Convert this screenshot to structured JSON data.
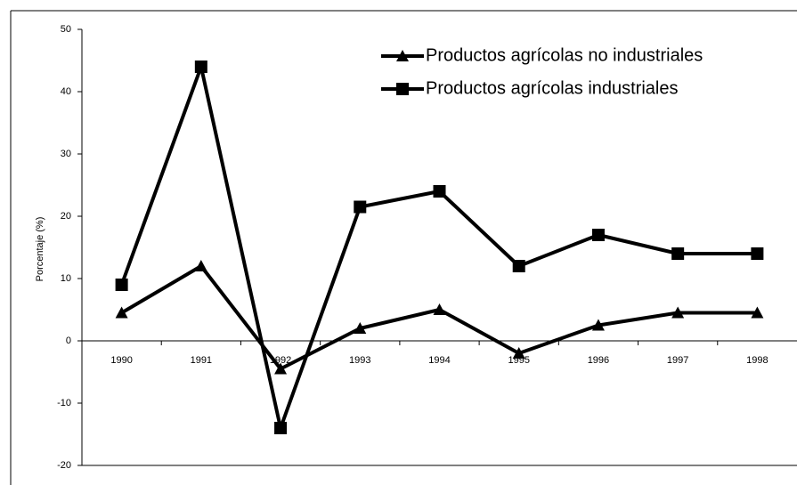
{
  "chart_data": {
    "type": "line",
    "ylabel": "Porcentaje (%)",
    "categories": [
      "1990",
      "1991",
      "1992",
      "1993",
      "1994",
      "1995",
      "1996",
      "1997",
      "1998"
    ],
    "series": [
      {
        "name": "Productos agrícolas no industriales",
        "color": "#000000",
        "marker": "triangle",
        "values": [
          4.5,
          12,
          -4.5,
          2,
          5,
          -2,
          2.5,
          4.5,
          4.5
        ]
      },
      {
        "name": "Productos agrícolas industriales",
        "color": "#000000",
        "marker": "square",
        "values": [
          9,
          44,
          -14,
          21.5,
          24,
          12,
          17,
          14,
          14
        ]
      }
    ],
    "ylim": [
      -20,
      50
    ],
    "yticks": [
      -20,
      -10,
      0,
      10,
      20,
      30,
      40,
      50
    ],
    "grid": false
  }
}
